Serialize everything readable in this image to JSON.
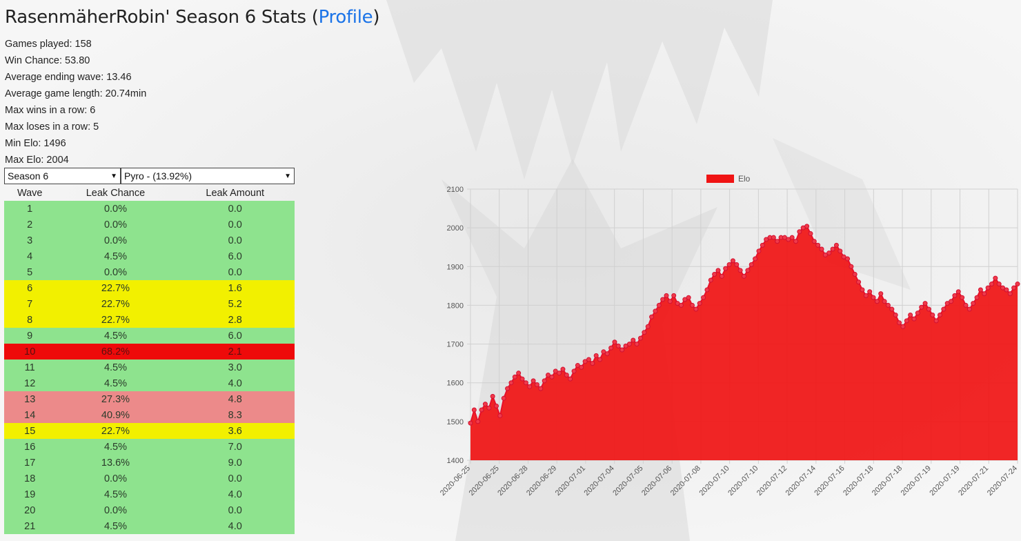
{
  "header": {
    "title_prefix": "RasenmäherRobin' Season 6 Stats (",
    "profile_link": "Profile",
    "title_suffix": ")"
  },
  "stats": [
    "Games played: 158",
    "Win Chance: 53.80",
    "Average ending wave: 13.46",
    "Average game length: 20.74min",
    "Max wins in a row: 6",
    "Max loses in a row: 5",
    "Min Elo: 1496",
    "Max Elo: 2004"
  ],
  "selects": {
    "season": "Season 6",
    "builder": "Pyro - (13.92%)"
  },
  "table": {
    "headers": [
      "Wave",
      "Leak Chance",
      "Leak Amount"
    ],
    "rows": [
      {
        "wave": "1",
        "chance": "0.0%",
        "amount": "0.0",
        "level": "green"
      },
      {
        "wave": "2",
        "chance": "0.0%",
        "amount": "0.0",
        "level": "green"
      },
      {
        "wave": "3",
        "chance": "0.0%",
        "amount": "0.0",
        "level": "green"
      },
      {
        "wave": "4",
        "chance": "4.5%",
        "amount": "6.0",
        "level": "green"
      },
      {
        "wave": "5",
        "chance": "0.0%",
        "amount": "0.0",
        "level": "green"
      },
      {
        "wave": "6",
        "chance": "22.7%",
        "amount": "1.6",
        "level": "yellow"
      },
      {
        "wave": "7",
        "chance": "22.7%",
        "amount": "5.2",
        "level": "yellow"
      },
      {
        "wave": "8",
        "chance": "22.7%",
        "amount": "2.8",
        "level": "yellow"
      },
      {
        "wave": "9",
        "chance": "4.5%",
        "amount": "6.0",
        "level": "green"
      },
      {
        "wave": "10",
        "chance": "68.2%",
        "amount": "2.1",
        "level": "red"
      },
      {
        "wave": "11",
        "chance": "4.5%",
        "amount": "3.0",
        "level": "green"
      },
      {
        "wave": "12",
        "chance": "4.5%",
        "amount": "4.0",
        "level": "green"
      },
      {
        "wave": "13",
        "chance": "27.3%",
        "amount": "4.8",
        "level": "pink"
      },
      {
        "wave": "14",
        "chance": "40.9%",
        "amount": "8.3",
        "level": "pink"
      },
      {
        "wave": "15",
        "chance": "22.7%",
        "amount": "3.6",
        "level": "yellow"
      },
      {
        "wave": "16",
        "chance": "4.5%",
        "amount": "7.0",
        "level": "green"
      },
      {
        "wave": "17",
        "chance": "13.6%",
        "amount": "9.0",
        "level": "green"
      },
      {
        "wave": "18",
        "chance": "0.0%",
        "amount": "0.0",
        "level": "green"
      },
      {
        "wave": "19",
        "chance": "4.5%",
        "amount": "4.0",
        "level": "green"
      },
      {
        "wave": "20",
        "chance": "0.0%",
        "amount": "0.0",
        "level": "green"
      },
      {
        "wave": "21",
        "chance": "4.5%",
        "amount": "4.0",
        "level": "green"
      }
    ]
  },
  "colors": {
    "green": "#8ee38e",
    "yellow": "#f2f000",
    "red": "#ee0a0a",
    "pink": "#ec8a8a",
    "elo_fill": "#f01414",
    "link": "#1a73e8"
  },
  "chart_data": {
    "type": "area",
    "legend": "Elo",
    "legend_position": "top",
    "grid": true,
    "ylim": [
      1400,
      2100
    ],
    "y_ticks": [
      1400,
      1500,
      1600,
      1700,
      1800,
      1900,
      2000,
      2100
    ],
    "x_tick_labels": [
      "2020-06-25",
      "2020-06-25",
      "2020-06-28",
      "2020-06-29",
      "2020-07-01",
      "2020-07-04",
      "2020-07-05",
      "2020-07-06",
      "2020-07-08",
      "2020-07-10",
      "2020-07-10",
      "2020-07-12",
      "2020-07-14",
      "2020-07-16",
      "2020-07-18",
      "2020-07-18",
      "2020-07-19",
      "2020-07-19",
      "2020-07-21",
      "2020-07-24"
    ],
    "series": [
      {
        "name": "Elo",
        "values": [
          1496,
          1530,
          1500,
          1530,
          1545,
          1535,
          1565,
          1540,
          1515,
          1560,
          1585,
          1600,
          1615,
          1625,
          1610,
          1600,
          1590,
          1605,
          1595,
          1585,
          1605,
          1620,
          1615,
          1630,
          1625,
          1635,
          1620,
          1610,
          1630,
          1645,
          1640,
          1655,
          1660,
          1650,
          1670,
          1660,
          1680,
          1675,
          1690,
          1705,
          1695,
          1685,
          1695,
          1700,
          1710,
          1700,
          1715,
          1730,
          1745,
          1770,
          1785,
          1800,
          1815,
          1825,
          1810,
          1825,
          1805,
          1800,
          1815,
          1820,
          1800,
          1790,
          1805,
          1820,
          1840,
          1865,
          1880,
          1890,
          1875,
          1895,
          1905,
          1915,
          1905,
          1890,
          1875,
          1890,
          1905,
          1920,
          1940,
          1955,
          1970,
          1975,
          1975,
          1965,
          1975,
          1975,
          1970,
          1975,
          1965,
          1990,
          2000,
          2004,
          1985,
          1965,
          1955,
          1945,
          1930,
          1935,
          1945,
          1955,
          1940,
          1925,
          1920,
          1900,
          1880,
          1860,
          1840,
          1825,
          1835,
          1820,
          1810,
          1830,
          1810,
          1800,
          1790,
          1775,
          1755,
          1745,
          1760,
          1775,
          1765,
          1780,
          1795,
          1805,
          1790,
          1775,
          1760,
          1775,
          1790,
          1805,
          1810,
          1825,
          1835,
          1820,
          1800,
          1790,
          1805,
          1820,
          1840,
          1830,
          1845,
          1855,
          1870,
          1855,
          1845,
          1840,
          1830,
          1845,
          1855
        ]
      }
    ]
  }
}
